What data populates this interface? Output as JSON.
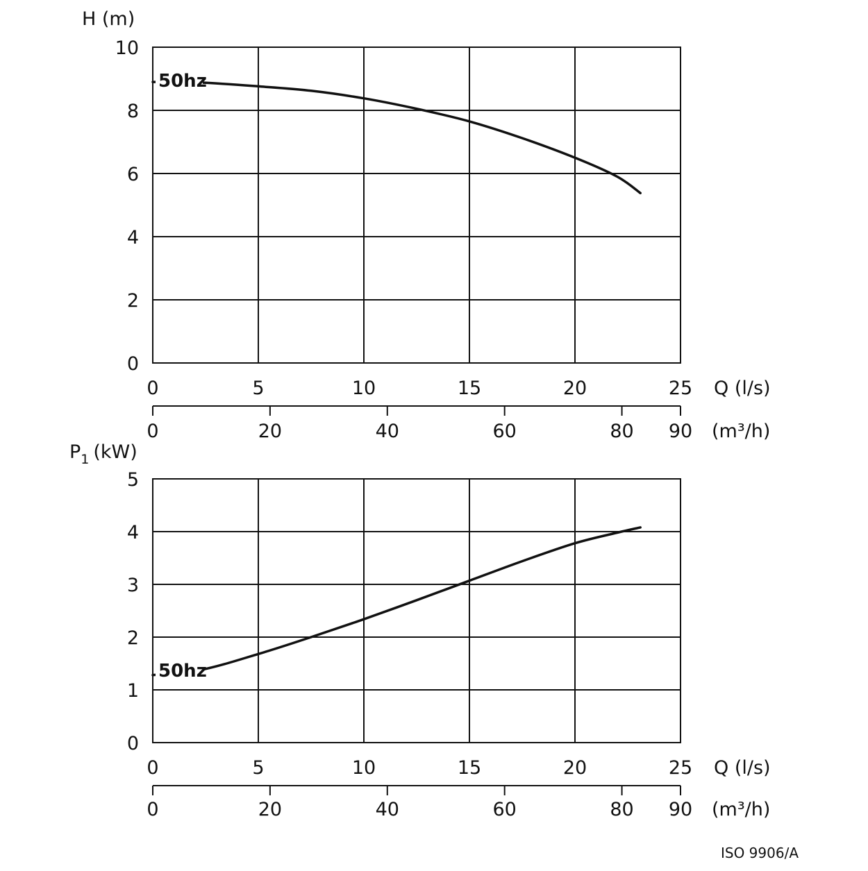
{
  "chart_data": [
    {
      "type": "line",
      "ylabel": "H (m)",
      "ylim": [
        0,
        10
      ],
      "yticks": [
        "0",
        "2",
        "4",
        "6",
        "8",
        "10"
      ],
      "xlim_ls": [
        0,
        25
      ],
      "xticks_ls": [
        "0",
        "5",
        "10",
        "15",
        "20",
        "25"
      ],
      "xlabel_ls": "Q (l/s)",
      "xlim_m3h": [
        0,
        90
      ],
      "xticks_m3h": [
        "0",
        "20",
        "40",
        "60",
        "80",
        "90"
      ],
      "xlabel_m3h": "(m³/h)",
      "grid": true,
      "series": [
        {
          "name": "50hz",
          "x": [
            0,
            2.3,
            5,
            7.5,
            10,
            12.5,
            15,
            17.5,
            20,
            22,
            23.1
          ],
          "y": [
            8.9,
            8.88,
            8.76,
            8.62,
            8.38,
            8.05,
            7.65,
            7.12,
            6.5,
            5.9,
            5.38
          ]
        }
      ]
    },
    {
      "type": "line",
      "ylabel": "P1 (kW)",
      "ylim": [
        0,
        5
      ],
      "yticks": [
        "0",
        "1",
        "2",
        "3",
        "4",
        "5"
      ],
      "xlim_ls": [
        0,
        25
      ],
      "xticks_ls": [
        "0",
        "5",
        "10",
        "15",
        "20",
        "25"
      ],
      "xlabel_ls": "Q (l/s)",
      "xlim_m3h": [
        0,
        90
      ],
      "xticks_m3h": [
        "0",
        "20",
        "40",
        "60",
        "80",
        "90"
      ],
      "xlabel_m3h": "(m³/h)",
      "grid": true,
      "series": [
        {
          "name": "50hz",
          "x": [
            0,
            2.3,
            5,
            7.5,
            10,
            12.5,
            15,
            17.5,
            20,
            22,
            23.1
          ],
          "y": [
            1.28,
            1.38,
            1.68,
            2.0,
            2.34,
            2.7,
            3.07,
            3.44,
            3.78,
            3.98,
            4.08
          ]
        }
      ]
    }
  ],
  "footnote": "ISO 9906/A"
}
